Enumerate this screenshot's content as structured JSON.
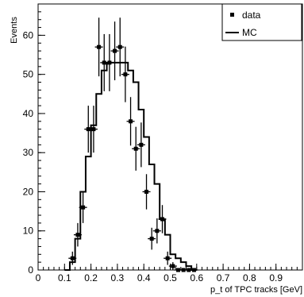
{
  "chart_data": {
    "type": "histogram",
    "xlabel": "p_t of TPC tracks [GeV]",
    "ylabel": "Events",
    "xlim": [
      0,
      1.0
    ],
    "ylim": [
      0,
      68
    ],
    "x_ticks": [
      "0",
      "0.1",
      "0.2",
      "0.3",
      "0.4",
      "0.5",
      "0.6",
      "0.7",
      "0.8",
      "0.9"
    ],
    "y_ticks": [
      "0",
      "10",
      "20",
      "30",
      "40",
      "50",
      "60"
    ],
    "grid": false,
    "legend": {
      "placement": "top-right",
      "entries": [
        "data",
        "MC"
      ]
    },
    "series": [
      {
        "name": "MC",
        "style": "step",
        "bins": [
          0.1,
          0.12,
          0.14,
          0.16,
          0.18,
          0.2,
          0.22,
          0.24,
          0.26,
          0.28,
          0.3,
          0.32,
          0.34,
          0.36,
          0.38,
          0.4,
          0.42,
          0.44,
          0.46,
          0.48,
          0.5,
          0.52,
          0.54,
          0.56,
          0.58,
          0.6
        ],
        "values": [
          0,
          2,
          8,
          20,
          29,
          37,
          45,
          51,
          53,
          53,
          53,
          53,
          51,
          48,
          41,
          34,
          27,
          22,
          13,
          9,
          4,
          3,
          2,
          1,
          0
        ]
      },
      {
        "name": "data",
        "style": "points",
        "x": [
          0.13,
          0.15,
          0.17,
          0.19,
          0.21,
          0.23,
          0.25,
          0.27,
          0.29,
          0.31,
          0.33,
          0.35,
          0.37,
          0.39,
          0.41,
          0.43,
          0.45,
          0.47,
          0.49,
          0.51,
          0.53,
          0.55,
          0.57,
          0.59
        ],
        "y": [
          3,
          9,
          16,
          36,
          36,
          57,
          53,
          53,
          56,
          57,
          50,
          38,
          31,
          32,
          20,
          8,
          10,
          13,
          3,
          1,
          0,
          0,
          0,
          0
        ],
        "yerr": [
          1.7,
          3,
          4,
          6,
          6,
          7.5,
          7.3,
          7.3,
          7.5,
          7.5,
          7.1,
          6.2,
          5.6,
          5.7,
          4.5,
          2.8,
          3.2,
          3.6,
          1.7,
          1,
          0,
          0,
          0,
          0
        ]
      }
    ]
  }
}
